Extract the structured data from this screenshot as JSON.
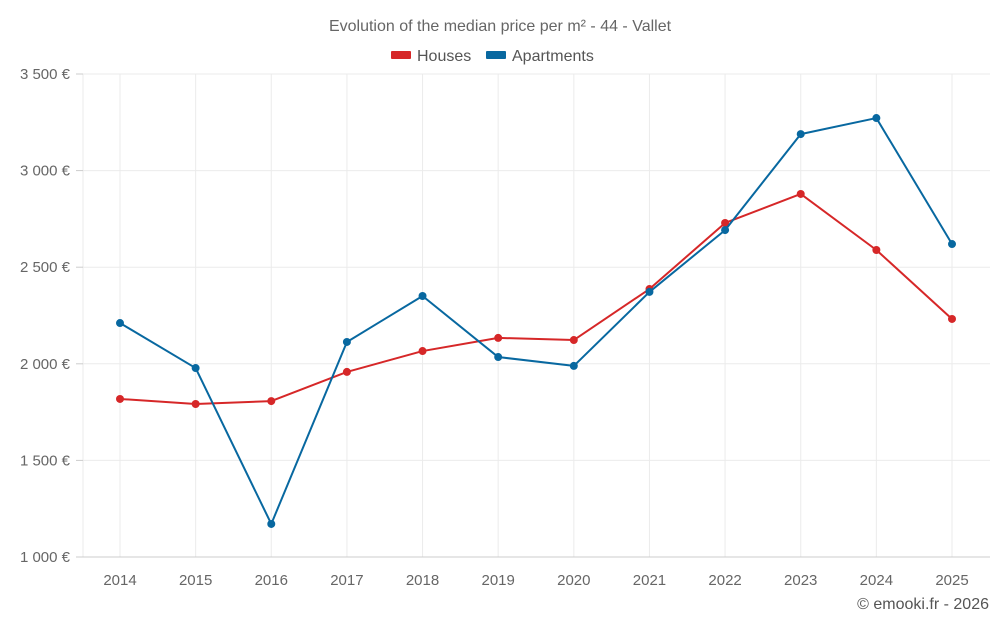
{
  "chart_data": {
    "type": "line",
    "title": "Evolution of the median price per m² - 44 - Vallet",
    "xlabel": "",
    "ylabel": "",
    "categories": [
      "2014",
      "2015",
      "2016",
      "2017",
      "2018",
      "2019",
      "2020",
      "2021",
      "2022",
      "2023",
      "2024",
      "2025"
    ],
    "ylim": [
      1000,
      3500
    ],
    "yticks": [
      1000,
      1500,
      2000,
      2500,
      3000,
      3500
    ],
    "ytick_labels": [
      "1 000 €",
      "1 500 €",
      "2 000 €",
      "2 500 €",
      "3 000 €",
      "3 500 €"
    ],
    "grid": true,
    "legend_position": "top-center",
    "series": [
      {
        "name": "Houses",
        "color": "#d62728",
        "values": [
          1818,
          1792,
          1807,
          1958,
          2066,
          2134,
          2123,
          2387,
          2729,
          2879,
          2589,
          2232
        ]
      },
      {
        "name": "Apartments",
        "color": "#0868a0",
        "values": [
          2211,
          1978,
          1171,
          2113,
          2351,
          2035,
          1989,
          2372,
          2692,
          3189,
          3272,
          2620
        ]
      }
    ],
    "credit": "© emooki.fr - 2026"
  }
}
